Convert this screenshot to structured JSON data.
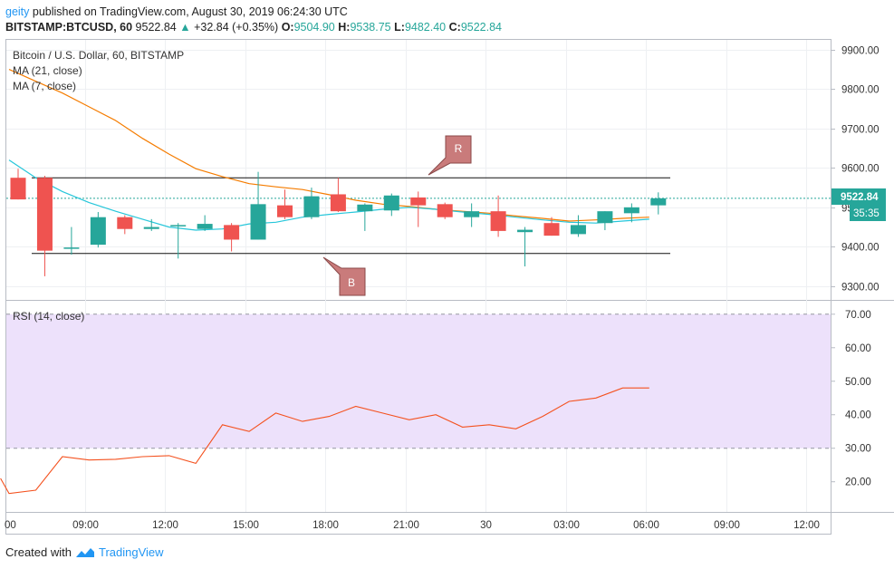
{
  "header": {
    "author": "geity",
    "published_text": "published on TradingView.com, August 30, 2019 06:24:30 UTC",
    "symbol": "BITSTAMP:BTCUSD, 60",
    "last": "9522.84",
    "change": "+32.84 (+0.35%)",
    "o_label": "O:",
    "o_value": "9504.90",
    "h_label": "H:",
    "h_value": "9538.75",
    "l_label": "L:",
    "l_value": "9482.40",
    "c_label": "C:",
    "c_value": "9522.84"
  },
  "legend": {
    "title": "Bitcoin / U.S. Dollar, 60, BITSTAMP",
    "ma21": "MA (21, close)",
    "ma7": "MA (7, close)",
    "rsi": "RSI (14, close)"
  },
  "price_tag": {
    "value": "9522.84",
    "countdown": "35:35"
  },
  "annotations": {
    "resistance": "R",
    "support": "B"
  },
  "footer": {
    "created_with": "Created with",
    "brand": "TradingView"
  },
  "colors": {
    "up": "#26a69a",
    "down": "#ef5350",
    "ma21": "#f57c00",
    "ma7": "#26c6da",
    "rsi": "#f4511e",
    "rsi_band": "#ede1fb",
    "callout": "#c97b7b"
  },
  "chart_data": [
    {
      "type": "candlestick",
      "title": "Bitcoin / U.S. Dollar, 60, BITSTAMP",
      "x_tick_labels": [
        "09:00",
        "12:00",
        "15:00",
        "18:00",
        "21:00",
        "30",
        "03:00",
        "06:00",
        "09:00",
        "12:00"
      ],
      "y_ticks": [
        9300,
        9400,
        9500,
        9600,
        9700,
        9800,
        9900
      ],
      "ylim": [
        9265,
        9925
      ],
      "current_price": 9522.84,
      "resistance_level": 9575,
      "support_level": 9383,
      "candles": [
        {
          "x": 0.0,
          "o": 9575,
          "h": 9598,
          "l": 9520,
          "c": 9520
        },
        {
          "x": 1.0,
          "o": 9575,
          "h": 9580,
          "l": 9325,
          "c": 9390
        },
        {
          "x": 2.0,
          "o": 9395,
          "h": 9450,
          "l": 9380,
          "c": 9398
        },
        {
          "x": 3.0,
          "o": 9405,
          "h": 9488,
          "l": 9398,
          "c": 9475
        },
        {
          "x": 4.0,
          "o": 9475,
          "h": 9480,
          "l": 9432,
          "c": 9445
        },
        {
          "x": 5.0,
          "o": 9445,
          "h": 9470,
          "l": 9440,
          "c": 9450
        },
        {
          "x": 6.0,
          "o": 9452,
          "h": 9460,
          "l": 9370,
          "c": 9455
        },
        {
          "x": 7.0,
          "o": 9445,
          "h": 9480,
          "l": 9440,
          "c": 9458
        },
        {
          "x": 8.0,
          "o": 9455,
          "h": 9460,
          "l": 9388,
          "c": 9418
        },
        {
          "x": 9.0,
          "o": 9418,
          "h": 9590,
          "l": 9418,
          "c": 9508
        },
        {
          "x": 10.0,
          "o": 9505,
          "h": 9545,
          "l": 9470,
          "c": 9475
        },
        {
          "x": 11.0,
          "o": 9475,
          "h": 9550,
          "l": 9470,
          "c": 9528
        },
        {
          "x": 12.0,
          "o": 9533,
          "h": 9575,
          "l": 9488,
          "c": 9490
        },
        {
          "x": 13.0,
          "o": 9490,
          "h": 9510,
          "l": 9440,
          "c": 9507
        },
        {
          "x": 14.0,
          "o": 9492,
          "h": 9535,
          "l": 9478,
          "c": 9530
        },
        {
          "x": 15.0,
          "o": 9525,
          "h": 9540,
          "l": 9450,
          "c": 9505
        },
        {
          "x": 16.0,
          "o": 9508,
          "h": 9512,
          "l": 9470,
          "c": 9475
        },
        {
          "x": 17.0,
          "o": 9475,
          "h": 9510,
          "l": 9450,
          "c": 9490
        },
        {
          "x": 18.0,
          "o": 9490,
          "h": 9530,
          "l": 9425,
          "c": 9440
        },
        {
          "x": 19.0,
          "o": 9437,
          "h": 9450,
          "l": 9350,
          "c": 9443
        },
        {
          "x": 20.0,
          "o": 9460,
          "h": 9475,
          "l": 9428,
          "c": 9428
        },
        {
          "x": 21.0,
          "o": 9432,
          "h": 9480,
          "l": 9425,
          "c": 9455
        },
        {
          "x": 22.0,
          "o": 9460,
          "h": 9490,
          "l": 9442,
          "c": 9490
        },
        {
          "x": 23.0,
          "o": 9485,
          "h": 9510,
          "l": 9462,
          "c": 9500
        },
        {
          "x": 24.0,
          "o": 9505,
          "h": 9538,
          "l": 9482,
          "c": 9522.84
        }
      ],
      "ma21": [
        [
          0,
          9850
        ],
        [
          1,
          9820
        ],
        [
          2,
          9790
        ],
        [
          3,
          9755
        ],
        [
          4,
          9720
        ],
        [
          5,
          9675
        ],
        [
          6,
          9635
        ],
        [
          7,
          9598
        ],
        [
          8,
          9578
        ],
        [
          9,
          9560
        ],
        [
          10,
          9552
        ],
        [
          11,
          9545
        ],
        [
          12,
          9532
        ],
        [
          13,
          9518
        ],
        [
          14,
          9508
        ],
        [
          15,
          9502
        ],
        [
          16,
          9495
        ],
        [
          17,
          9490
        ],
        [
          18,
          9485
        ],
        [
          19,
          9478
        ],
        [
          20,
          9472
        ],
        [
          21,
          9465
        ],
        [
          22,
          9468
        ],
        [
          23,
          9472
        ],
        [
          24,
          9475
        ]
      ],
      "ma7": [
        [
          0,
          9620
        ],
        [
          1,
          9575
        ],
        [
          2,
          9540
        ],
        [
          3,
          9512
        ],
        [
          4,
          9490
        ],
        [
          5,
          9470
        ],
        [
          6,
          9450
        ],
        [
          7,
          9442
        ],
        [
          8,
          9445
        ],
        [
          9,
          9458
        ],
        [
          10,
          9462
        ],
        [
          11,
          9475
        ],
        [
          12,
          9482
        ],
        [
          13,
          9488
        ],
        [
          14,
          9495
        ],
        [
          15,
          9500
        ],
        [
          16,
          9495
        ],
        [
          17,
          9488
        ],
        [
          18,
          9482
        ],
        [
          19,
          9475
        ],
        [
          20,
          9468
        ],
        [
          21,
          9462
        ],
        [
          22,
          9460
        ],
        [
          23,
          9465
        ],
        [
          24,
          9470
        ]
      ]
    },
    {
      "type": "line",
      "title": "RSI (14, close)",
      "y_ticks": [
        20,
        30,
        40,
        50,
        60,
        70
      ],
      "ylim": [
        11,
        74
      ],
      "band": [
        30,
        70
      ],
      "series": [
        {
          "x": [
            -1.0,
            0.0,
            1.0,
            2.0,
            3.0,
            4.0,
            5.0,
            6.0,
            7.0,
            8.0,
            9.0,
            10.0,
            11.0,
            12.0,
            13.0,
            14.0,
            15.0,
            16.0,
            17.0,
            18.0,
            19.0,
            20.0,
            21.0,
            22.0,
            23.0,
            24.0
          ],
          "y": [
            21,
            16.5,
            17.5,
            27.5,
            26.5,
            26.7,
            27.5,
            27.8,
            25.5,
            37,
            35,
            40.5,
            38,
            39.5,
            42.5,
            40.5,
            38.5,
            40,
            36.3,
            37,
            35.8,
            39.5,
            44,
            45,
            48,
            48
          ]
        }
      ]
    }
  ]
}
